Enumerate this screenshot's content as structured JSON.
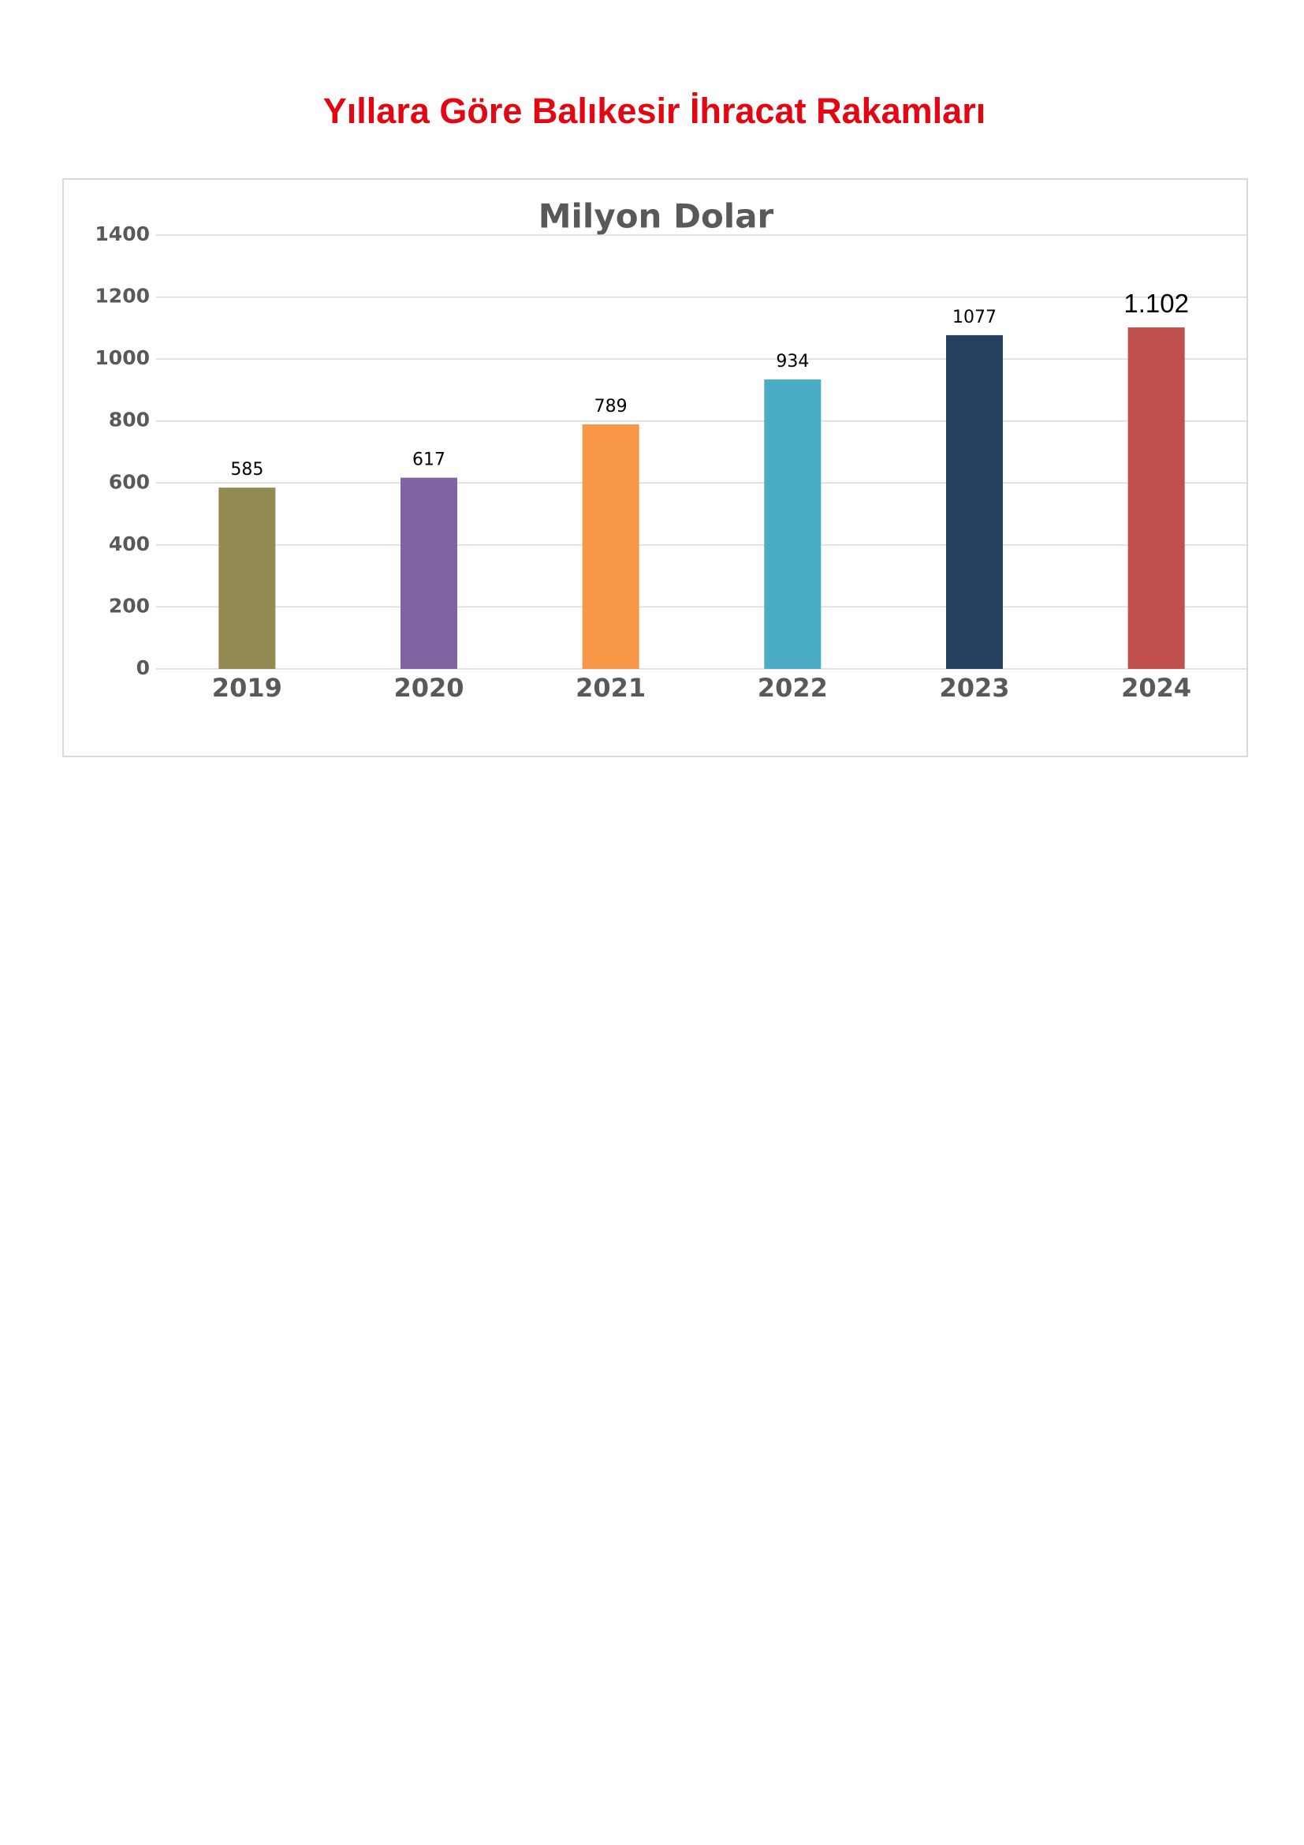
{
  "page_title": "Yıllara Göre Balıkesir İhracat Rakamları",
  "chart_data": {
    "type": "bar",
    "title": "Milyon Dolar",
    "categories": [
      "2019",
      "2020",
      "2021",
      "2022",
      "2023",
      "2024"
    ],
    "values": [
      585,
      617,
      789,
      934,
      1077,
      1102
    ],
    "value_labels": [
      "585",
      "617",
      "789",
      "934",
      "1077",
      "1.102"
    ],
    "colors": [
      "#948a54",
      "#8064a2",
      "#f79646",
      "#4bacc6",
      "#243f60",
      "#c0504d"
    ],
    "ylim": [
      0,
      1400
    ],
    "yticks": [
      0,
      200,
      400,
      600,
      800,
      1000,
      1200,
      1400
    ],
    "grid": true
  }
}
